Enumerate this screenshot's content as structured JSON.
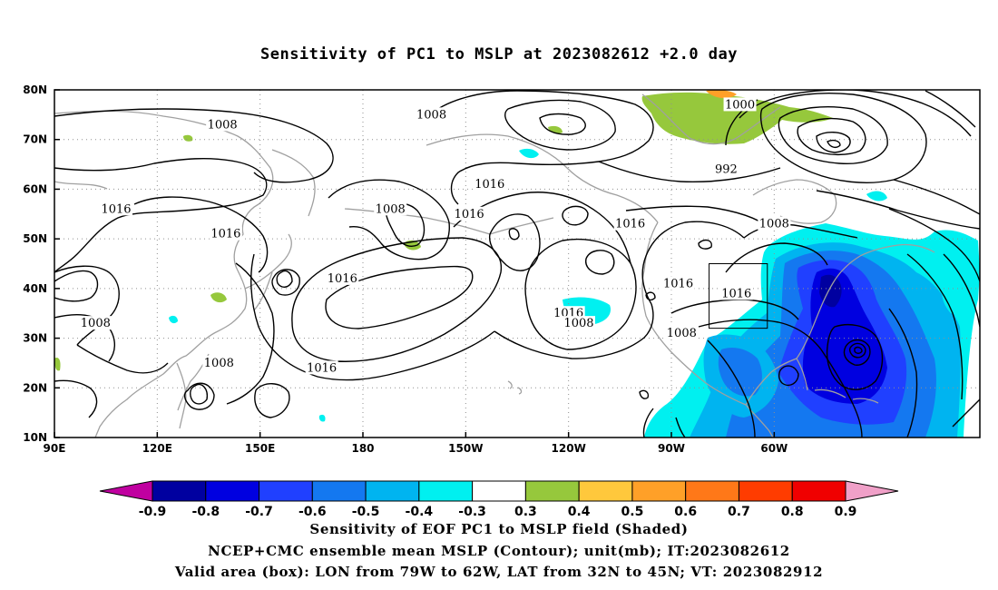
{
  "title": "Sensitivity of PC1 to MSLP at 2023082612 +2.0 day",
  "map": {
    "lat_labels": [
      "80N",
      "70N",
      "60N",
      "50N",
      "40N",
      "30N",
      "20N",
      "10N"
    ],
    "lon_labels": [
      "90E",
      "120E",
      "150E",
      "180",
      "150W",
      "120W",
      "90W",
      "60W"
    ],
    "contour_labels": [
      {
        "text": "1008",
        "lon": 139,
        "lat": 73
      },
      {
        "text": "1008",
        "lon": -172,
        "lat": 56
      },
      {
        "text": "1008",
        "lon": -160,
        "lat": 75
      },
      {
        "text": "1000",
        "lon": -70,
        "lat": 77
      },
      {
        "text": "992",
        "lon": -74,
        "lat": 64
      },
      {
        "text": "1008",
        "lon": -60,
        "lat": 53
      },
      {
        "text": "1016",
        "lon": 108,
        "lat": 56
      },
      {
        "text": "1016",
        "lon": 140,
        "lat": 51
      },
      {
        "text": "1016",
        "lon": 174,
        "lat": 42
      },
      {
        "text": "1016",
        "lon": -143,
        "lat": 61
      },
      {
        "text": "1016",
        "lon": -149,
        "lat": 55
      },
      {
        "text": "1016",
        "lon": -102,
        "lat": 53
      },
      {
        "text": "1016",
        "lon": -88,
        "lat": 41
      },
      {
        "text": "1016",
        "lon": -71,
        "lat": 39
      },
      {
        "text": "1016",
        "lon": -120,
        "lat": 35
      },
      {
        "text": "1008",
        "lon": -117,
        "lat": 33
      },
      {
        "text": "1008",
        "lon": -87,
        "lat": 31
      },
      {
        "text": "1008",
        "lon": 102,
        "lat": 33
      },
      {
        "text": "1008",
        "lon": 138,
        "lat": 25
      },
      {
        "text": "1016",
        "lon": 168,
        "lat": 24
      }
    ],
    "valid_box": {
      "lon_min": -79,
      "lon_max": -62,
      "lat_min": 32,
      "lat_max": 45
    },
    "colors": {
      "contour": "#000000",
      "coast": "#a0a0a0",
      "grid": "#909090"
    }
  },
  "colorbar": {
    "labels": [
      "-0.9",
      "-0.8",
      "-0.7",
      "-0.6",
      "-0.5",
      "-0.4",
      "-0.3",
      "0.3",
      "0.4",
      "0.5",
      "0.6",
      "0.7",
      "0.8",
      "0.9"
    ],
    "colors": [
      "#c000a0",
      "#0000a0",
      "#0000e0",
      "#2040ff",
      "#1478f0",
      "#00b4f0",
      "#00f0f0",
      "#ffffff",
      "#96c83c",
      "#ffc83c",
      "#ffa028",
      "#ff7818",
      "#ff3c00",
      "#f00000",
      "#f0a0c8"
    ]
  },
  "captions": [
    "Sensitivity of EOF PC1 to MSLP field (Shaded)",
    "NCEP+CMC ensemble mean MSLP (Contour); unit(mb); IT:2023082612",
    "Valid area (box): LON from 79W to 62W, LAT from 32N to 45N; VT: 2023082912"
  ]
}
